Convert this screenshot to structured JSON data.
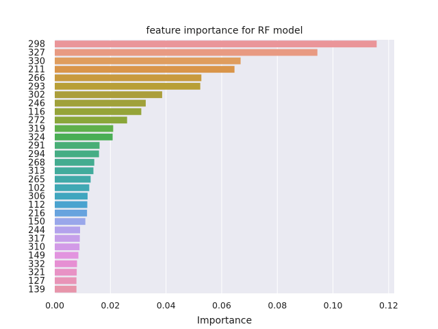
{
  "chart_data": {
    "type": "bar",
    "orientation": "horizontal",
    "title": "feature importance for RF model",
    "xlabel": "Importance",
    "ylabel": "",
    "xlim": [
      0,
      0.122
    ],
    "xticks": [
      "0.00",
      "0.02",
      "0.04",
      "0.06",
      "0.08",
      "0.10",
      "0.12"
    ],
    "grid": true,
    "categories": [
      "298",
      "327",
      "330",
      "211",
      "266",
      "293",
      "302",
      "246",
      "116",
      "272",
      "319",
      "324",
      "291",
      "294",
      "268",
      "313",
      "265",
      "102",
      "306",
      "112",
      "216",
      "150",
      "244",
      "317",
      "310",
      "149",
      "332",
      "321",
      "127",
      "139"
    ],
    "values": [
      0.1157,
      0.0944,
      0.0668,
      0.0646,
      0.0527,
      0.0523,
      0.0386,
      0.0327,
      0.0311,
      0.026,
      0.021,
      0.0208,
      0.0161,
      0.0159,
      0.0142,
      0.0139,
      0.0129,
      0.0124,
      0.0118,
      0.0117,
      0.0116,
      0.011,
      0.0091,
      0.009,
      0.0089,
      0.0085,
      0.008,
      0.0079,
      0.0078,
      0.0078
    ],
    "colors": [
      "#ea9599",
      "#e89a82",
      "#df9d5e",
      "#d9954a",
      "#c89a3e",
      "#b89f37",
      "#ab9e3b",
      "#a0a13a",
      "#95a439",
      "#8aa63a",
      "#5fb04b",
      "#4aae55",
      "#48ae76",
      "#45ad84",
      "#44ac90",
      "#42ab9c",
      "#41a9a8",
      "#40a8b4",
      "#40a6bf",
      "#4aa3cf",
      "#67a3de",
      "#99a7ea",
      "#b3a2ec",
      "#c69fe9",
      "#d29ae7",
      "#e294df",
      "#e68fd3",
      "#e892c5",
      "#e894b7",
      "#e795aa"
    ]
  }
}
